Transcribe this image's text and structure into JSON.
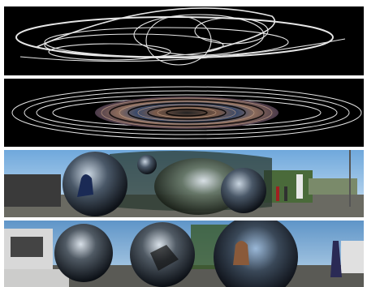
{
  "figure": {
    "panels": [
      {
        "id": "orbit-lines-panel",
        "description": ""
      },
      {
        "id": "orbit-disc-panel",
        "description": ""
      },
      {
        "id": "street-spheres-panel-1",
        "description": ""
      },
      {
        "id": "street-spheres-panel-2",
        "description": ""
      }
    ],
    "colors": {
      "background": "#000000",
      "lines": "#e8e8e8",
      "sky": "#8fc1e8",
      "ground": "#5a5a52",
      "sphere_dark": "#1a1f28"
    }
  }
}
